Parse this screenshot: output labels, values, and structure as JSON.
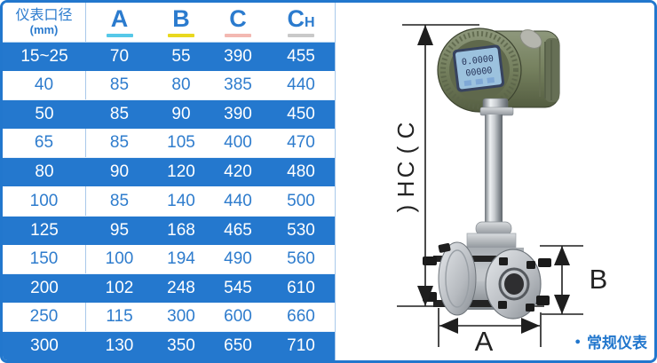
{
  "table": {
    "header": {
      "col0_line1": "仪表口径",
      "col0_line2": "(mm)",
      "col_a": "A",
      "col_b": "B",
      "col_c": "C",
      "col_ch_main": "C",
      "col_ch_sub": "H"
    },
    "rows": [
      {
        "size": "15~25",
        "a": "70",
        "b": "55",
        "c": "390",
        "ch": "455"
      },
      {
        "size": "40",
        "a": "85",
        "b": "80",
        "c": "385",
        "ch": "440"
      },
      {
        "size": "50",
        "a": "85",
        "b": "90",
        "c": "390",
        "ch": "450"
      },
      {
        "size": "65",
        "a": "85",
        "b": "105",
        "c": "400",
        "ch": "470"
      },
      {
        "size": "80",
        "a": "90",
        "b": "120",
        "c": "420",
        "ch": "480"
      },
      {
        "size": "100",
        "a": "85",
        "b": "140",
        "c": "440",
        "ch": "500"
      },
      {
        "size": "125",
        "a": "95",
        "b": "168",
        "c": "465",
        "ch": "530"
      },
      {
        "size": "150",
        "a": "100",
        "b": "194",
        "c": "490",
        "ch": "560"
      },
      {
        "size": "200",
        "a": "102",
        "b": "248",
        "c": "545",
        "ch": "610"
      },
      {
        "size": "250",
        "a": "115",
        "b": "300",
        "c": "600",
        "ch": "660"
      },
      {
        "size": "300",
        "a": "130",
        "b": "350",
        "c": "650",
        "ch": "710"
      }
    ]
  },
  "diagram": {
    "c_label": "C(CH)",
    "a_label": "A",
    "b_label": "B",
    "lcd_line1": "0.0000",
    "lcd_line2": "00000",
    "legend_bullet": "●",
    "legend_text": "常规仪表"
  },
  "colors": {
    "frame_blue": "#2277cd",
    "row_blue": "#2478ce",
    "text_blue": "#2e7ccd",
    "divider_blue": "#a9c9ea",
    "underline_a": "#56c8e8",
    "underline_b": "#e9d81f",
    "underline_c": "#f3b8b2",
    "underline_ch": "#c9c9c9",
    "dimension_dark": "#1e1e1e",
    "housing_olive": "#75805e",
    "lcd_blue": "#9cc2de"
  }
}
